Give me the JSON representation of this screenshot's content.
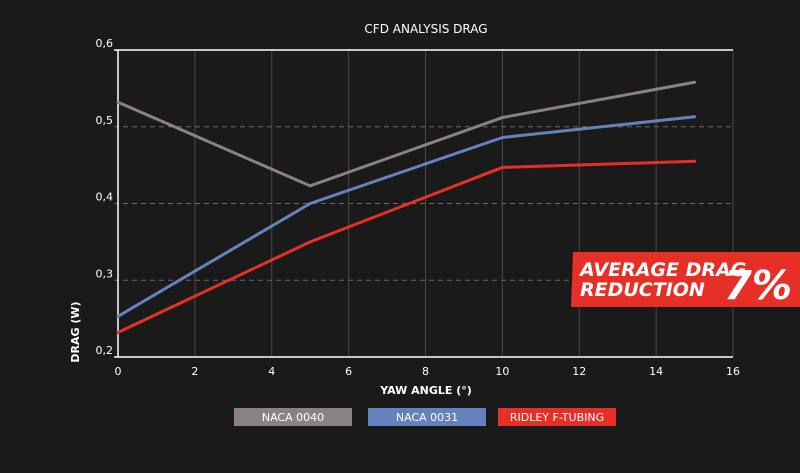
{
  "chart_data": {
    "type": "line",
    "title": "CFD ANALYSIS DRAG",
    "xlabel": "YAW ANGLE (°)",
    "ylabel": "DRAG (W)",
    "xlim": [
      0,
      16
    ],
    "ylim": [
      0.2,
      0.6
    ],
    "x_ticks": [
      0,
      2,
      4,
      6,
      8,
      10,
      12,
      14,
      16
    ],
    "x_tick_labels": [
      "0",
      "2",
      "4",
      "6",
      "8",
      "10",
      "12",
      "14",
      "16"
    ],
    "y_ticks": [
      0.2,
      0.3,
      0.4,
      0.5,
      0.6
    ],
    "y_tick_labels": [
      "0,2",
      "0,3",
      "0,4",
      "0,5",
      "0,6"
    ],
    "grid": true,
    "legend_position": "bottom",
    "series": [
      {
        "name": "NACA 0040",
        "color": "#8a8282",
        "x": [
          0,
          5,
          10,
          15
        ],
        "values": [
          0.532,
          0.423,
          0.512,
          0.558
        ]
      },
      {
        "name": "NACA 0031",
        "color": "#6482bd",
        "x": [
          0,
          5,
          10,
          15
        ],
        "values": [
          0.253,
          0.4,
          0.486,
          0.513
        ]
      },
      {
        "name": "RIDLEY F-TUBING",
        "color": "#e63027",
        "x": [
          0,
          5,
          10,
          15
        ],
        "values": [
          0.232,
          0.35,
          0.447,
          0.455
        ]
      }
    ],
    "annotation": {
      "line1": "AVERAGE DRAG",
      "line2": "REDUCTION",
      "value": "7%",
      "color": "#e63027"
    }
  }
}
